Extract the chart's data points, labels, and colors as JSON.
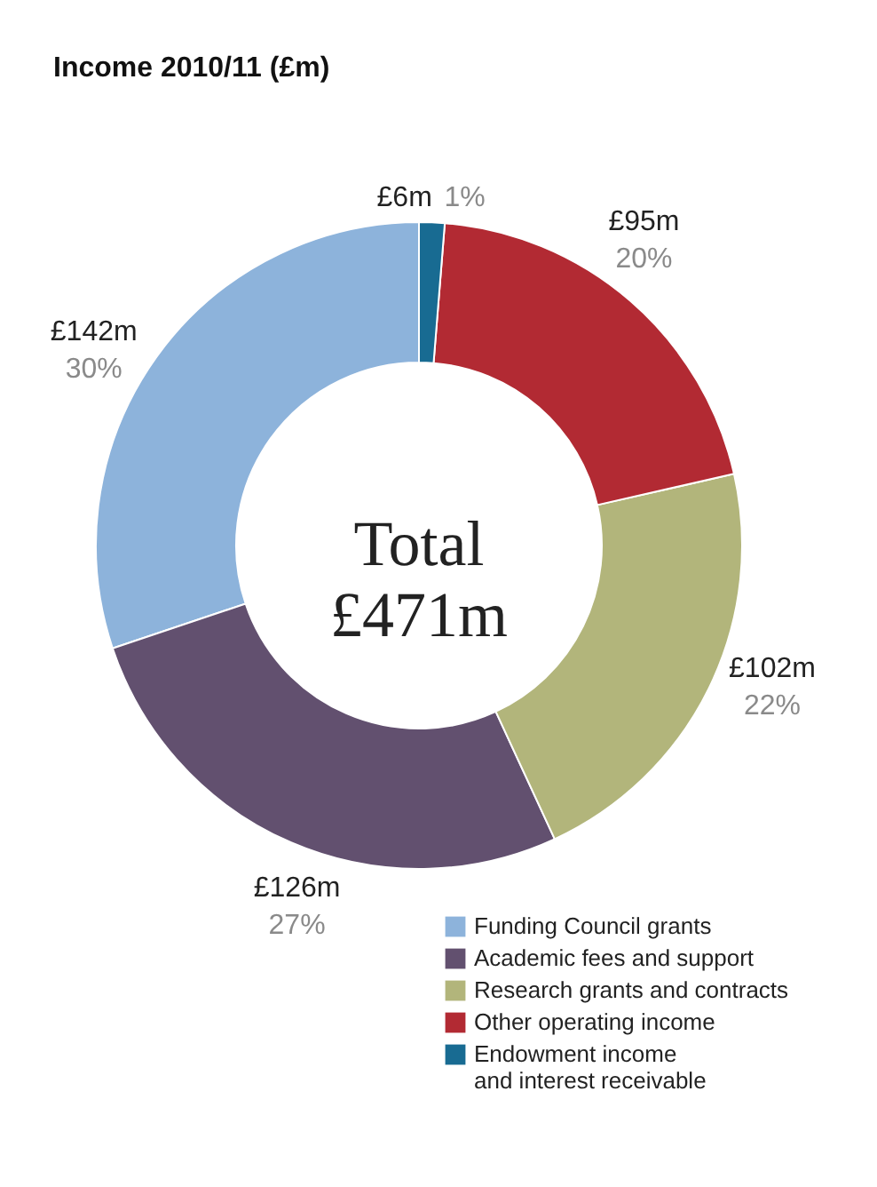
{
  "chart_data": {
    "type": "donut",
    "title": "Income 2010/11 (£m)",
    "categories": [
      "Funding Council grants",
      "Academic fees and support",
      "Research grants and contracts",
      "Other operating income",
      "Endowment income and interest receivable"
    ],
    "values": [
      142,
      126,
      102,
      95,
      6
    ],
    "colors": [
      "#8db3db",
      "#62506f",
      "#b2b57b",
      "#b22a33",
      "#186b92"
    ],
    "value_labels": [
      "£142m",
      "£126m",
      "£102m",
      "£95m",
      "£6m"
    ],
    "annotations": [
      "Total £471m",
      {
        "text": "30%",
        "x": "Funding Council grants"
      },
      {
        "text": "27%",
        "x": "Academic fees and support"
      },
      {
        "text": "22%",
        "x": "Research grants and contracts"
      },
      {
        "text": "20%",
        "x": "Other operating income"
      },
      {
        "text": "1%",
        "x": "Endowment income and interest receivable"
      }
    ],
    "legend": "bottom right"
  }
}
